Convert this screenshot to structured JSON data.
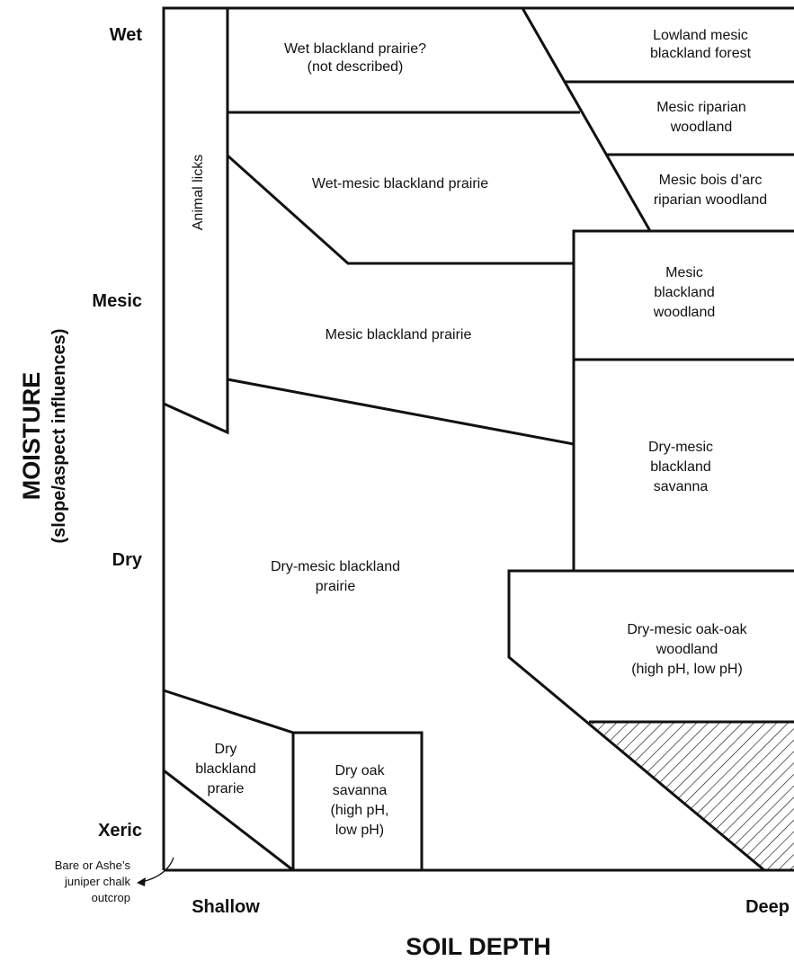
{
  "axes": {
    "y_title": "MOISTURE",
    "y_subtitle": "(slope/aspect influences)",
    "x_title": "SOIL DEPTH",
    "y_ticks": [
      "Wet",
      "Mesic",
      "Dry",
      "Xeric"
    ],
    "x_ticks": [
      "Shallow",
      "Deep"
    ]
  },
  "regions": {
    "wet_blackland_prairie": [
      "Wet blackland prairie?",
      "(not described)"
    ],
    "lowland_mesic_forest": [
      "Lowland mesic",
      "blackland forest"
    ],
    "mesic_riparian_woodland": [
      "Mesic riparian",
      "woodland"
    ],
    "wet_mesic_prairie": [
      "Wet-mesic blackland prairie"
    ],
    "mesic_bois_darc": [
      "Mesic bois d’arc",
      "riparian woodland"
    ],
    "animal_licks": [
      "Animal licks"
    ],
    "mesic_blackland_woodland": [
      "Mesic",
      "blackland",
      "woodland"
    ],
    "mesic_blackland_prairie": [
      "Mesic blackland prairie"
    ],
    "dry_mesic_savanna": [
      "Dry-mesic",
      "blackland",
      "savanna"
    ],
    "dry_mesic_prairie": [
      "Dry-mesic blackland",
      "prairie"
    ],
    "dry_mesic_oak_woodland": [
      "Dry-mesic oak-oak",
      "woodland",
      "(high pH, low pH)"
    ],
    "dry_blackland_prarie": [
      "Dry",
      "blackland",
      "prarie"
    ],
    "dry_oak_savanna": [
      "Dry oak",
      "savanna",
      "(high pH,",
      "low pH)"
    ]
  },
  "outcrop_note": [
    "Bare or Ashe’s",
    "juniper chalk",
    "outcrop"
  ]
}
